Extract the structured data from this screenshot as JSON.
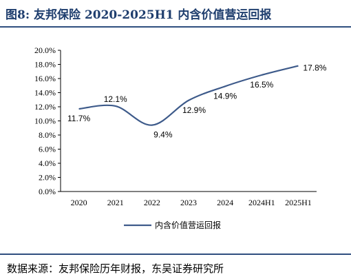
{
  "header": {
    "title": "图8:  友邦保险 2020-2025H1 内含价值营运回报"
  },
  "chart_data": {
    "type": "line",
    "categories": [
      "2020",
      "2021",
      "2022",
      "2023",
      "2024",
      "2024H1",
      "2025H1"
    ],
    "series": [
      {
        "name": "内含价值营运回报",
        "values": [
          11.7,
          12.1,
          9.4,
          12.9,
          14.9,
          16.5,
          17.8
        ]
      }
    ],
    "data_labels": [
      "11.7%",
      "12.1%",
      "9.4%",
      "12.9%",
      "14.9%",
      "16.5%",
      "17.8%"
    ],
    "y_ticks": [
      "0.0%",
      "2.0%",
      "4.0%",
      "6.0%",
      "8.0%",
      "10.0%",
      "12.0%",
      "14.0%",
      "16.0%",
      "18.0%",
      "20.0%"
    ],
    "ylim": [
      0,
      20
    ],
    "legend_position": "bottom",
    "line_color": "#3d5a8a",
    "smooth": true,
    "grid": false
  },
  "footer": {
    "source": "数据来源：友邦保险历年财报，东吴证券研究所"
  }
}
